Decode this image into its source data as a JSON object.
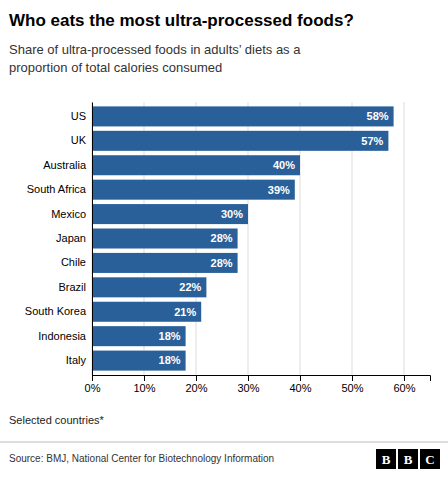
{
  "chart_data": {
    "type": "bar",
    "orientation": "horizontal",
    "title": "Who eats the most ultra-processed foods?",
    "subtitle": "Share of ultra-processed foods in adults’ diets as a\nproportion of total calories consumed",
    "categories": [
      "US",
      "UK",
      "Australia",
      "South Africa",
      "Mexico",
      "Japan",
      "Chile",
      "Brazil",
      "South Korea",
      "Indonesia",
      "Italy"
    ],
    "values": [
      58,
      57,
      40,
      39,
      30,
      28,
      28,
      22,
      21,
      18,
      18
    ],
    "value_labels": [
      "58%",
      "57%",
      "40%",
      "39%",
      "30%",
      "28%",
      "28%",
      "22%",
      "21%",
      "18%",
      "18%"
    ],
    "data_labels": true,
    "color": "#2A6099",
    "xlim": [
      0,
      65
    ],
    "xticks": [
      {
        "value": 0,
        "label": "0%"
      },
      {
        "value": 10,
        "label": "10%"
      },
      {
        "value": 20,
        "label": "20%"
      },
      {
        "value": 30,
        "label": "30%"
      },
      {
        "value": 40,
        "label": "40%"
      },
      {
        "value": 50,
        "label": "50%"
      },
      {
        "value": 60,
        "label": "60%"
      }
    ],
    "grid": true,
    "footer": "Selected countries*",
    "source": "Source: BMJ, National Center for Biotechnology Information",
    "logo": [
      "B",
      "B",
      "C"
    ]
  }
}
